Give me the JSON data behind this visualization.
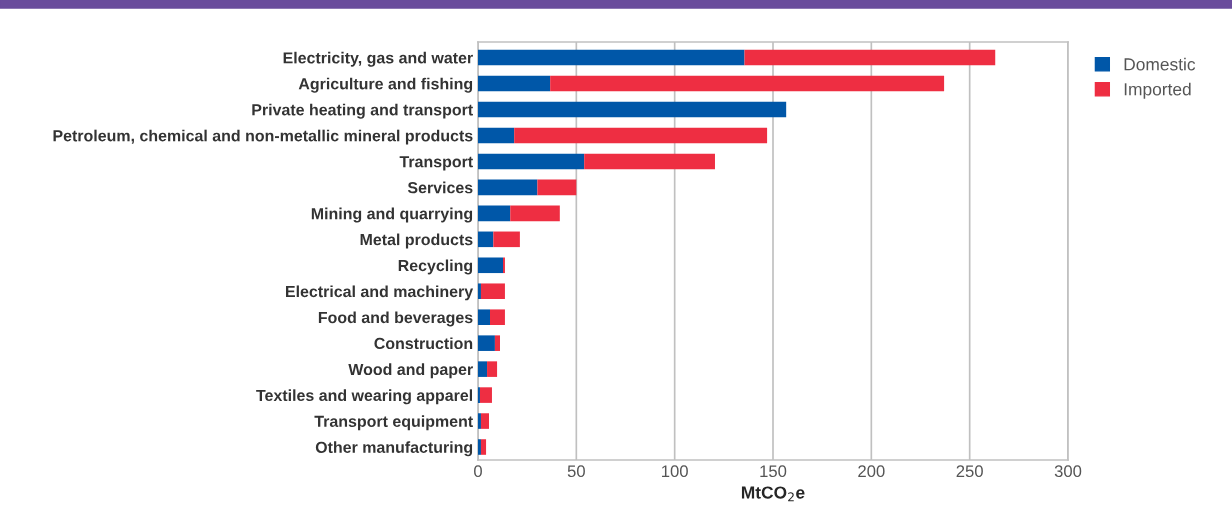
{
  "chart_data": {
    "type": "bar",
    "orientation": "horizontal",
    "stacked": true,
    "categories": [
      "Electricity, gas and water",
      "Agriculture and fishing",
      "Private heating and transport",
      "Petroleum, chemical and non-metallic mineral products",
      "Transport",
      "Services",
      "Mining and quarrying",
      "Metal products",
      "Recycling",
      "Electrical and machinery",
      "Food and beverages",
      "Construction",
      "Wood and paper",
      "Textiles and wearing apparel",
      "Transport equipment",
      "Other manufacturing"
    ],
    "series": [
      {
        "name": "Domestic",
        "color": "#0057a8",
        "values": [
          135.5,
          36.7,
          156.7,
          18.4,
          54,
          30.2,
          16.4,
          7.8,
          12.7,
          1.5,
          6.1,
          8.6,
          4.6,
          1.0,
          1.5,
          1.5
        ]
      },
      {
        "name": "Imported",
        "color": "#ee2e42",
        "values": [
          127.5,
          200.3,
          null,
          128.6,
          66.5,
          19.8,
          25.2,
          13.5,
          1.0,
          12.2,
          7.6,
          2.6,
          5.1,
          6.1,
          4.1,
          2.6
        ]
      }
    ],
    "xlabel": "MtCO$_{2}$e",
    "xlim": [
      0,
      300
    ],
    "xticks": [
      0,
      50,
      100,
      150,
      200,
      250,
      300
    ],
    "grid": "x",
    "legend": "top right"
  }
}
